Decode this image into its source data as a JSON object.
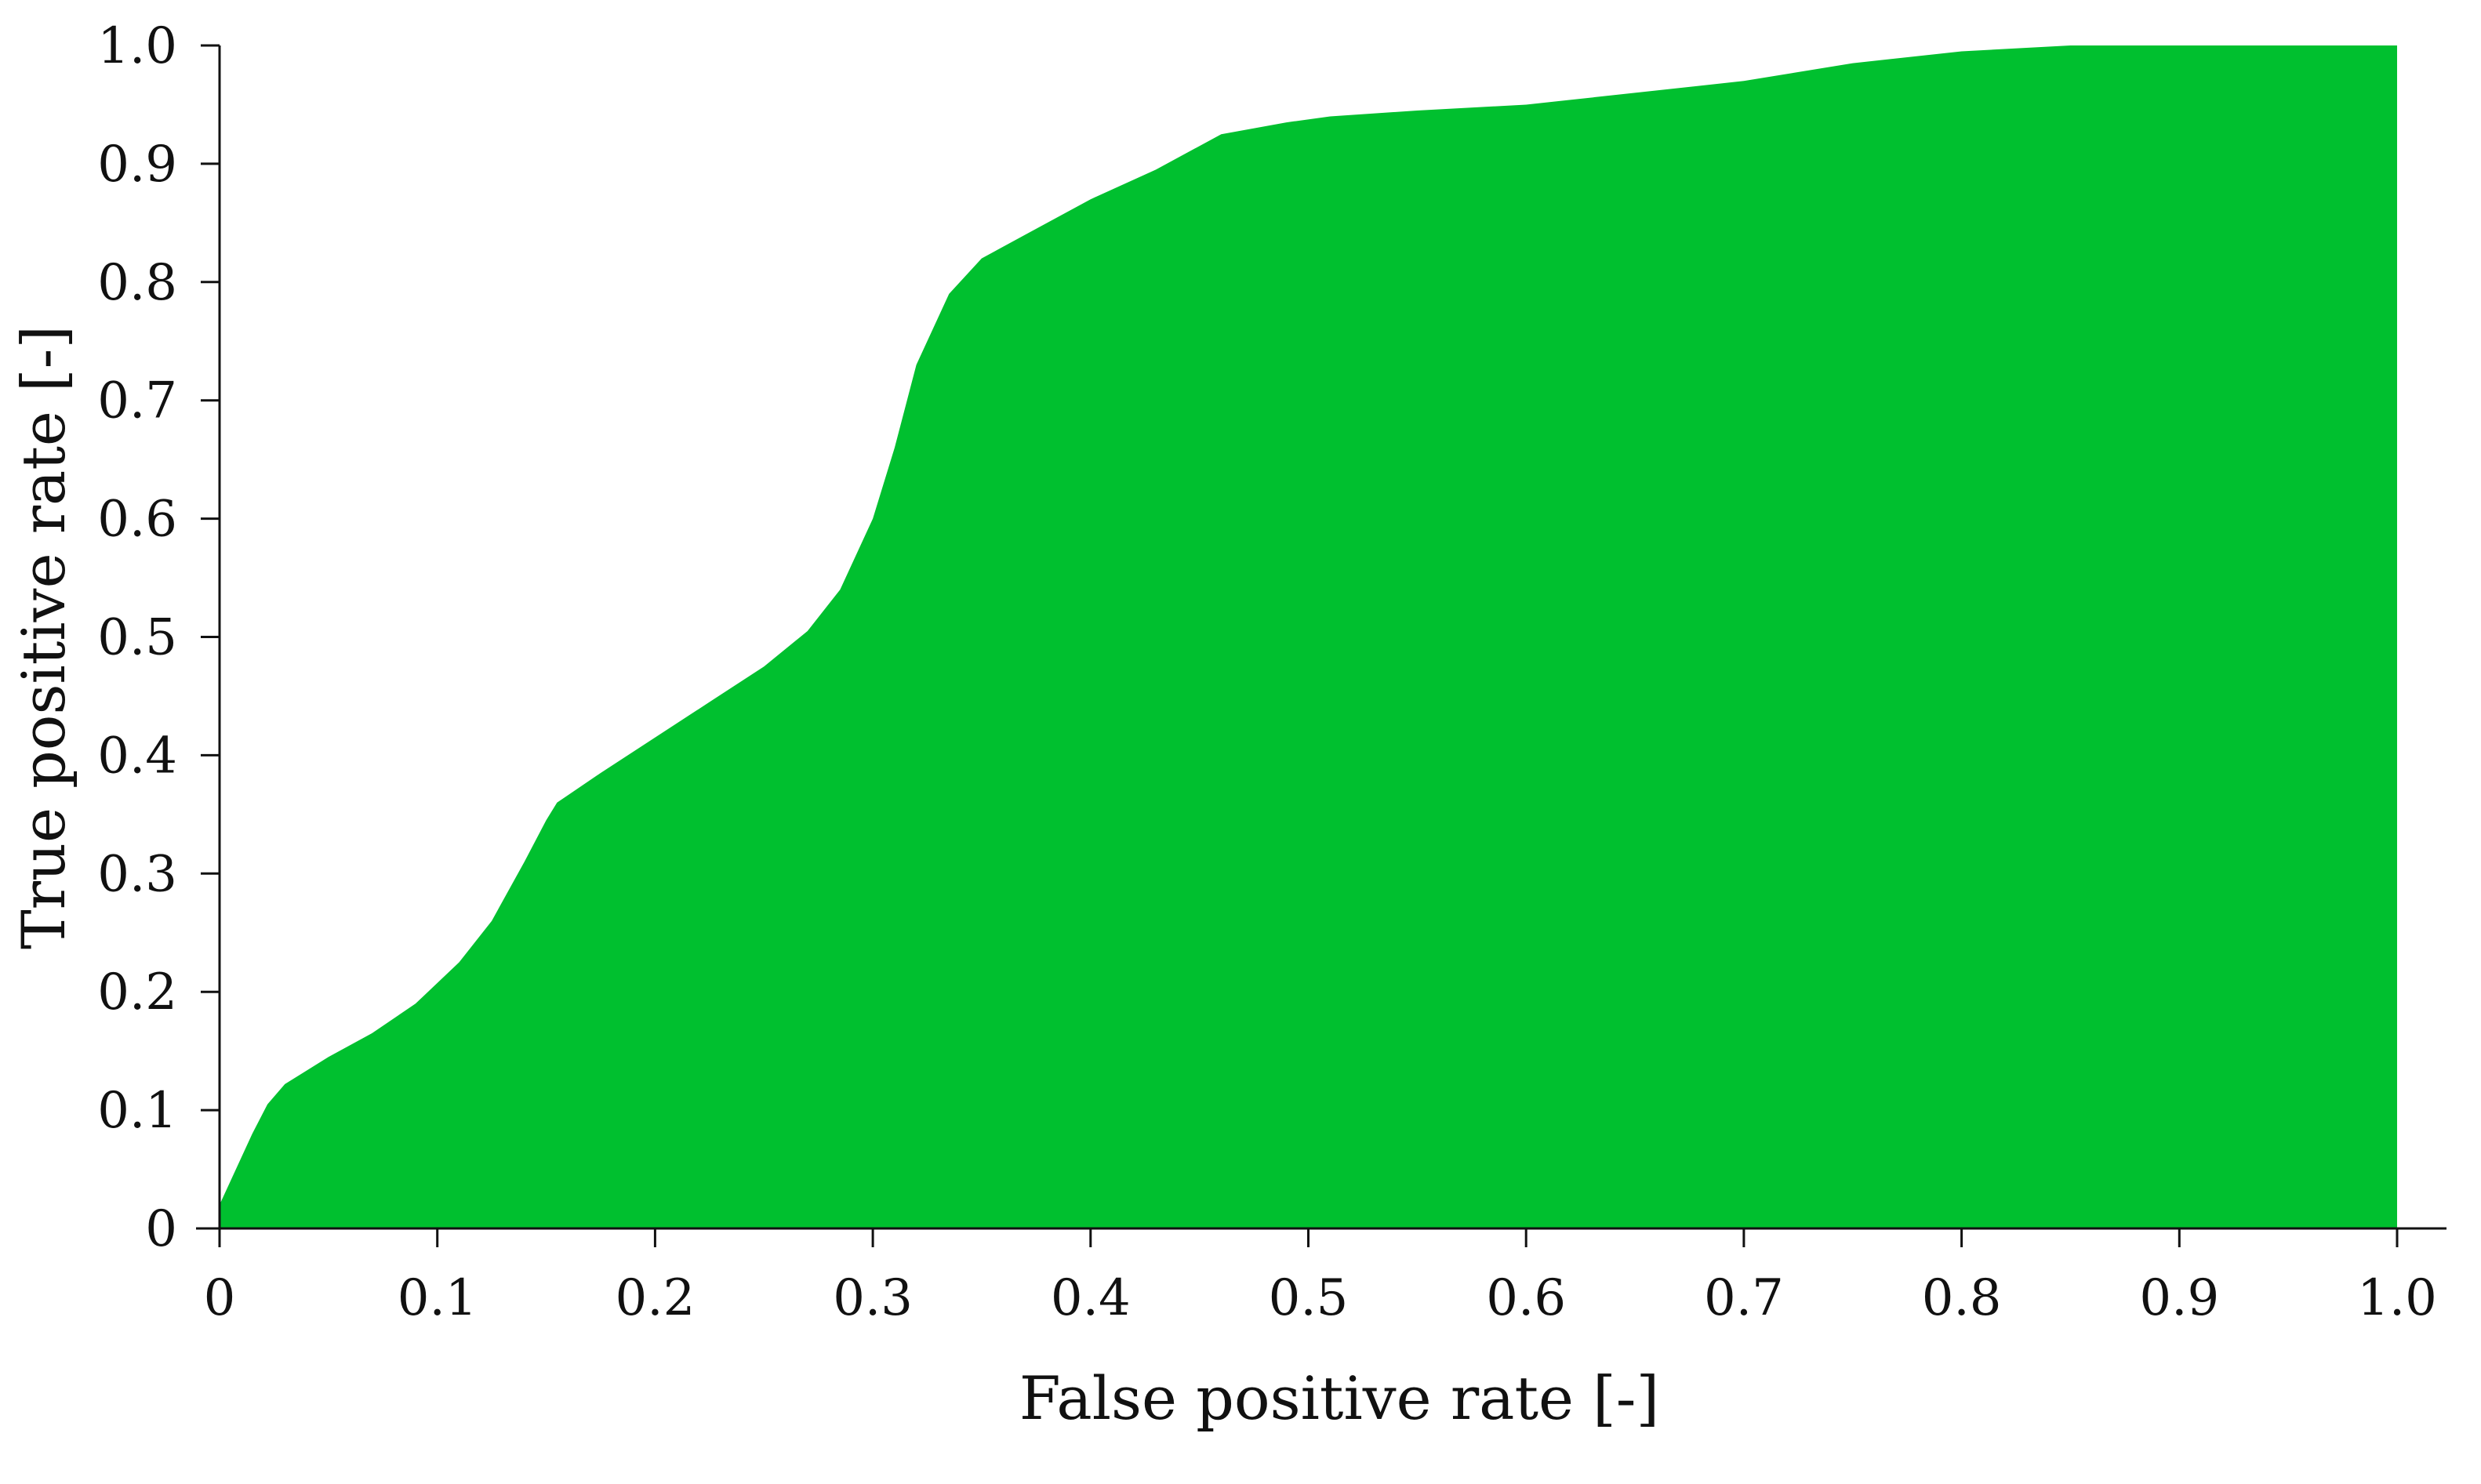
{
  "chart_data": {
    "type": "area",
    "xlabel": "False positive rate [-]",
    "ylabel": "True positive rate [-]",
    "xlim": [
      0,
      1.0
    ],
    "ylim": [
      0,
      1.0
    ],
    "x_ticks": [
      "0",
      "0.1",
      "0.2",
      "0.3",
      "0.4",
      "0.5",
      "0.6",
      "0.7",
      "0.8",
      "0.9",
      "1.0"
    ],
    "y_ticks": [
      "0",
      "0.1",
      "0.2",
      "0.3",
      "0.4",
      "0.5",
      "0.6",
      "0.7",
      "0.8",
      "0.9",
      "1.0"
    ],
    "grid": false,
    "fill_color": "#00c02f",
    "x": [
      0,
      0.005,
      0.015,
      0.022,
      0.03,
      0.05,
      0.07,
      0.09,
      0.11,
      0.125,
      0.14,
      0.15,
      0.155,
      0.175,
      0.2,
      0.225,
      0.25,
      0.27,
      0.285,
      0.3,
      0.31,
      0.32,
      0.335,
      0.35,
      0.37,
      0.4,
      0.43,
      0.46,
      0.49,
      0.51,
      0.55,
      0.6,
      0.65,
      0.7,
      0.75,
      0.8,
      0.85,
      0.9,
      0.95,
      1.0
    ],
    "y": [
      0.02,
      0.04,
      0.08,
      0.105,
      0.122,
      0.145,
      0.165,
      0.19,
      0.225,
      0.26,
      0.31,
      0.345,
      0.36,
      0.385,
      0.415,
      0.445,
      0.475,
      0.505,
      0.54,
      0.6,
      0.66,
      0.73,
      0.79,
      0.82,
      0.84,
      0.87,
      0.895,
      0.925,
      0.935,
      0.94,
      0.945,
      0.95,
      0.96,
      0.97,
      0.985,
      0.995,
      1.0,
      1.0,
      1.0,
      1.0
    ]
  }
}
